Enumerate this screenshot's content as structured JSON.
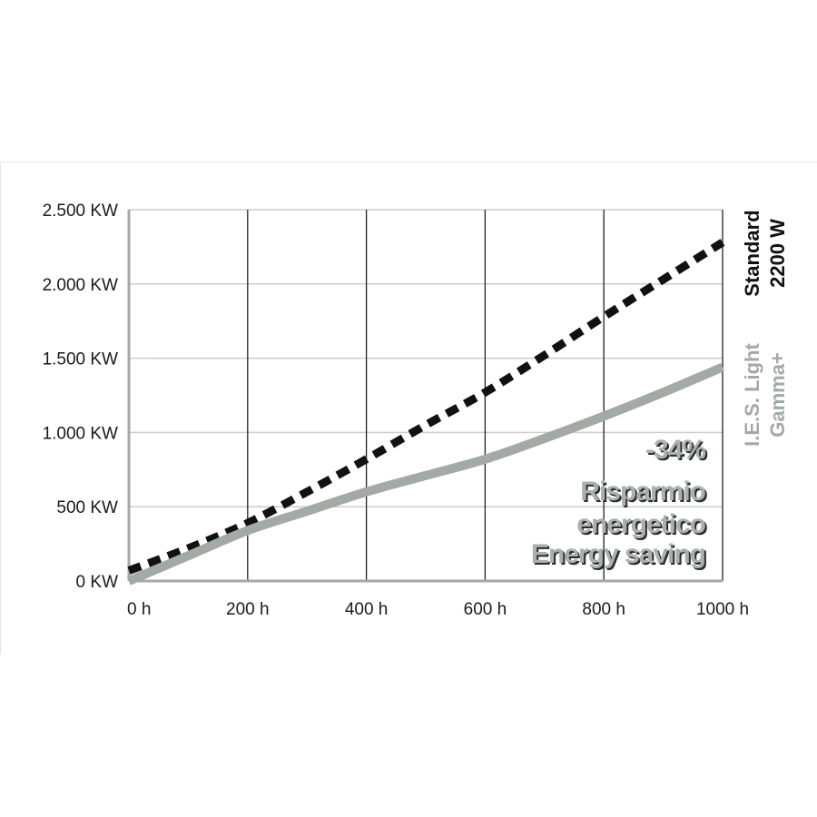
{
  "chart_data": {
    "type": "line",
    "title": "",
    "xlabel": "",
    "ylabel": "",
    "x": [
      0,
      100,
      200,
      300,
      400,
      500,
      600,
      700,
      800,
      900,
      1000
    ],
    "x_tick_labels": [
      "0 h",
      "200 h",
      "400 h",
      "600 h",
      "800 h",
      "1000 h"
    ],
    "x_ticks": [
      0,
      200,
      400,
      600,
      800,
      1000
    ],
    "y_tick_labels": [
      "0 KW",
      "500 KW",
      "1.000 KW",
      "1.500 KW",
      "2.000 KW",
      "2.500 KW"
    ],
    "y_ticks": [
      0,
      500,
      1000,
      1500,
      2000,
      2500
    ],
    "xlim": [
      0,
      1000
    ],
    "ylim": [
      0,
      2500
    ],
    "grid": "vertical",
    "series": [
      {
        "name_lines": [
          "Standard",
          "2200 W"
        ],
        "style": "dashed",
        "color": "#111111",
        "values": [
          70,
          220,
          390,
          600,
          820,
          1050,
          1270,
          1520,
          1780,
          2030,
          2280
        ]
      },
      {
        "name_lines": [
          "I.E.S. Light",
          "Gamma+"
        ],
        "style": "solid",
        "color": "#a3aaa6",
        "values": [
          0,
          170,
          340,
          470,
          600,
          710,
          820,
          960,
          1110,
          1270,
          1440
        ]
      }
    ],
    "annotation": {
      "lines": [
        "-34%",
        "Risparmio",
        "energetico",
        "Energy saving"
      ],
      "color": "#a9b1ad"
    }
  }
}
